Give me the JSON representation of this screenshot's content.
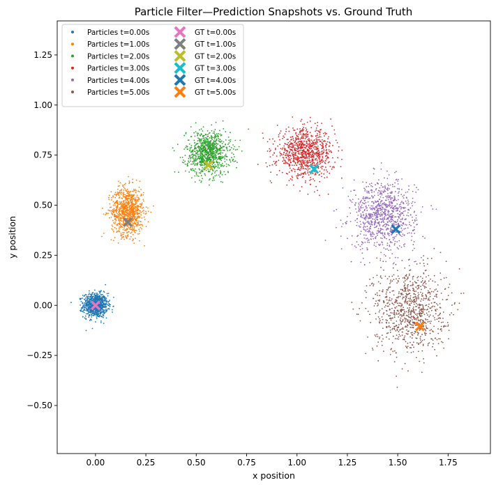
{
  "chart_data": {
    "type": "scatter",
    "title": "Particle Filter—Prediction Snapshots vs. Ground Truth",
    "xlabel": "x position",
    "ylabel": "y position",
    "xlim": [
      -0.19,
      1.96
    ],
    "ylim": [
      -0.74,
      1.42
    ],
    "x_ticks": [
      0.0,
      0.25,
      0.5,
      0.75,
      1.0,
      1.25,
      1.5,
      1.75
    ],
    "x_tick_labels": [
      "0.00",
      "0.25",
      "0.50",
      "0.75",
      "1.00",
      "1.25",
      "1.50",
      "1.75"
    ],
    "y_ticks": [
      -0.5,
      -0.25,
      0.0,
      0.25,
      0.5,
      0.75,
      1.0,
      1.25
    ],
    "y_tick_labels": [
      "−0.50",
      "−0.25",
      "0.00",
      "0.25",
      "0.50",
      "0.75",
      "1.00",
      "1.25"
    ],
    "grid": false,
    "legend_position": "top-left",
    "legend_columns": 2,
    "particle_series": [
      {
        "name": "Particles t=0.00s",
        "color": "#1f77b4",
        "center": [
          0.0,
          0.0
        ],
        "spread": [
          0.03,
          0.03
        ],
        "count": 900
      },
      {
        "name": "Particles t=1.00s",
        "color": "#ff7f0e",
        "center": [
          0.16,
          0.47
        ],
        "spread": [
          0.04,
          0.06
        ],
        "count": 900
      },
      {
        "name": "Particles t=2.00s",
        "color": "#2ca02c",
        "center": [
          0.56,
          0.76
        ],
        "spread": [
          0.055,
          0.055
        ],
        "count": 900
      },
      {
        "name": "Particles t=3.00s",
        "color": "#d62728",
        "center": [
          1.04,
          0.76
        ],
        "spread": [
          0.07,
          0.06
        ],
        "count": 900
      },
      {
        "name": "Particles t=4.00s",
        "color": "#9467bd",
        "center": [
          1.43,
          0.45
        ],
        "spread": [
          0.08,
          0.085
        ],
        "count": 900
      },
      {
        "name": "Particles t=5.00s",
        "color": "#8c564b",
        "center": [
          1.56,
          -0.02
        ],
        "spread": [
          0.09,
          0.11
        ],
        "count": 900
      }
    ],
    "ground_truth": [
      {
        "name": "GT t=0.00s",
        "color": "#e377c2",
        "x": 0.0,
        "y": 0.0
      },
      {
        "name": "GT t=1.00s",
        "color": "#7f7f7f",
        "x": 0.16,
        "y": 0.415
      },
      {
        "name": "GT t=2.00s",
        "color": "#bcbd22",
        "x": 0.56,
        "y": 0.7
      },
      {
        "name": "GT t=3.00s",
        "color": "#17becf",
        "x": 1.085,
        "y": 0.68
      },
      {
        "name": "GT t=4.00s",
        "color": "#1f77b4",
        "x": 1.49,
        "y": 0.38
      },
      {
        "name": "GT t=5.00s",
        "color": "#ff7f0e",
        "x": 1.61,
        "y": -0.105
      }
    ]
  }
}
